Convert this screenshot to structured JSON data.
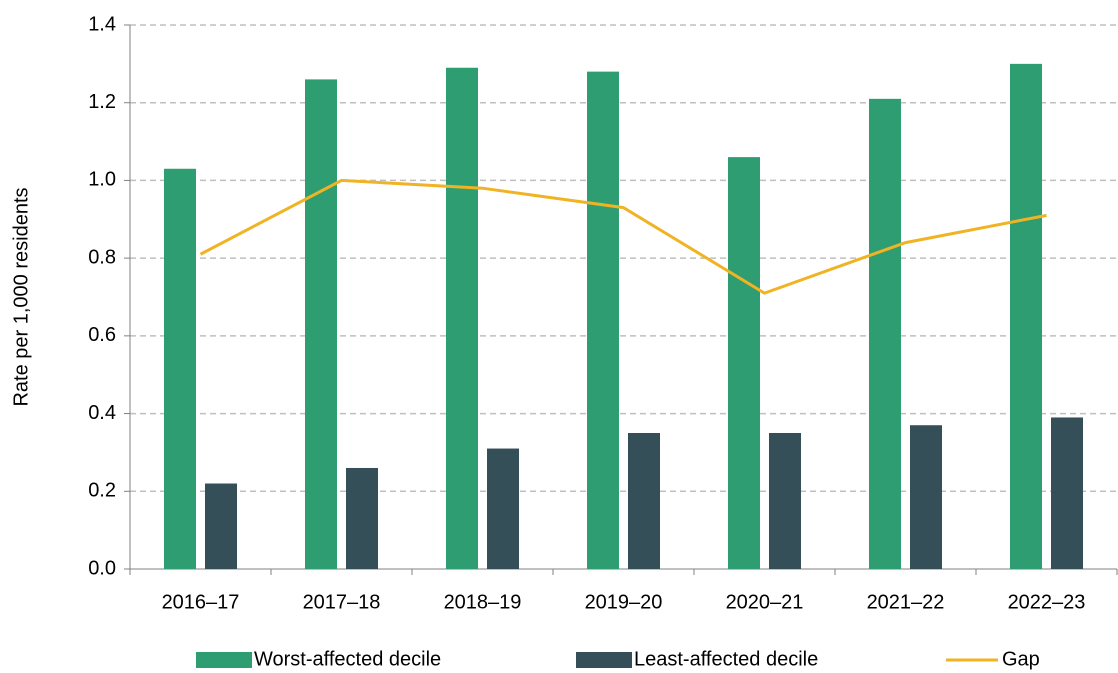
{
  "chart_data": {
    "type": "bar_line",
    "y_label": "Rate per 1,000 residents",
    "categories": [
      "2016–17",
      "2017–18",
      "2018–19",
      "2019–20",
      "2020–21",
      "2021–22",
      "2022–23"
    ],
    "series": [
      {
        "name": "Worst-affected decile",
        "type": "bar",
        "color": "#2e9e72",
        "values": [
          1.03,
          1.26,
          1.29,
          1.28,
          1.06,
          1.21,
          1.3
        ]
      },
      {
        "name": "Least-affected decile",
        "type": "bar",
        "color": "#344f57",
        "values": [
          0.22,
          0.26,
          0.31,
          0.35,
          0.35,
          0.37,
          0.39
        ]
      },
      {
        "name": "Gap",
        "type": "line",
        "color": "#f0b323",
        "values": [
          0.81,
          1.0,
          0.98,
          0.93,
          0.71,
          0.84,
          0.91
        ]
      }
    ],
    "ylim": [
      0,
      1.4
    ],
    "yticks": [
      {
        "value": 0,
        "label": "0.0"
      },
      0.2,
      0.4,
      0.6,
      0.8,
      {
        "value": 1,
        "label": "1.0"
      },
      1.2,
      1.4
    ],
    "grid": true,
    "legend": "bottom"
  }
}
